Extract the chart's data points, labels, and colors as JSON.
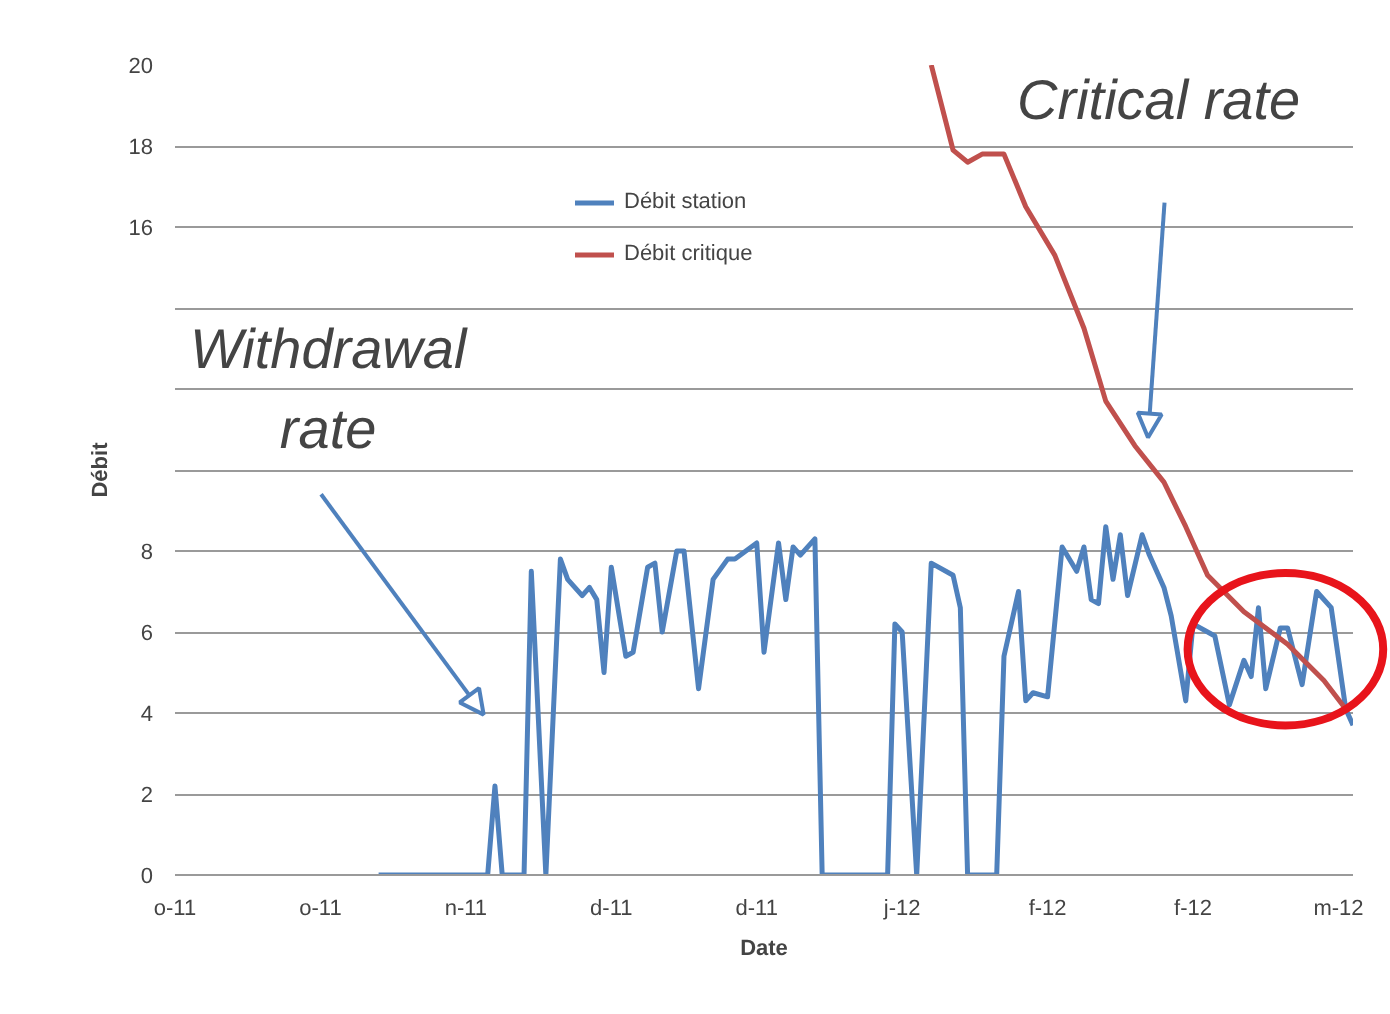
{
  "chart_data": {
    "type": "line",
    "xlabel": "Date",
    "ylabel": "Débit",
    "xlim": [
      "2011-10-05",
      "2012-03-15"
    ],
    "ylim": [
      0,
      20
    ],
    "xticks": [
      {
        "value": "2011-10-05",
        "label": "o-11"
      },
      {
        "value": "2011-10-25",
        "label": "o-11"
      },
      {
        "value": "2011-11-14",
        "label": "n-11"
      },
      {
        "value": "2011-12-04",
        "label": "d-11"
      },
      {
        "value": "2011-12-24",
        "label": "d-11"
      },
      {
        "value": "2012-01-13",
        "label": "j-12"
      },
      {
        "value": "2012-02-02",
        "label": "f-12"
      },
      {
        "value": "2012-02-22",
        "label": "f-12"
      },
      {
        "value": "2012-03-13",
        "label": "m-12"
      }
    ],
    "yticks": [
      0,
      2,
      4,
      6,
      8,
      {
        "value": 10,
        "label": null
      },
      {
        "value": 12,
        "label": null
      },
      {
        "value": 14,
        "label": null
      },
      16,
      18,
      20
    ],
    "grid": "y",
    "legend": "top",
    "series": [
      {
        "name": "Débit station",
        "color": "#4f81bd",
        "x": [
          "2011-11-02",
          "2011-11-17",
          "2011-11-18",
          "2011-11-19",
          "2011-11-22",
          "2011-11-23",
          "2011-11-25",
          "2011-11-27",
          "2011-11-28",
          "2011-11-30",
          "2011-12-01",
          "2011-12-02",
          "2011-12-03",
          "2011-12-04",
          "2011-12-06",
          "2011-12-07",
          "2011-12-09",
          "2011-12-10",
          "2011-12-11",
          "2011-12-13",
          "2011-12-14",
          "2011-12-16",
          "2011-12-18",
          "2011-12-20",
          "2011-12-21",
          "2011-12-24",
          "2011-12-25",
          "2011-12-27",
          "2011-12-28",
          "2011-12-29",
          "2011-12-30",
          "2012-01-01",
          "2012-01-02",
          "2012-01-11",
          "2012-01-12",
          "2012-01-13",
          "2012-01-15",
          "2012-01-17",
          "2012-01-20",
          "2012-01-21",
          "2012-01-22",
          "2012-01-26",
          "2012-01-27",
          "2012-01-29",
          "2012-01-30",
          "2012-01-31",
          "2012-02-02",
          "2012-02-04",
          "2012-02-06",
          "2012-02-07",
          "2012-02-08",
          "2012-02-09",
          "2012-02-10",
          "2012-02-11",
          "2012-02-12",
          "2012-02-13",
          "2012-02-15",
          "2012-02-16",
          "2012-02-18",
          "2012-02-19",
          "2012-02-21",
          "2012-02-22",
          "2012-02-25",
          "2012-02-27",
          "2012-02-29",
          "2012-03-01",
          "2012-03-02",
          "2012-03-03",
          "2012-03-05",
          "2012-03-06",
          "2012-03-08",
          "2012-03-10",
          "2012-03-12",
          "2012-03-14",
          "2012-03-15"
        ],
        "values": [
          0,
          0,
          2.2,
          0,
          0,
          7.5,
          0,
          7.8,
          7.3,
          6.9,
          7.1,
          6.8,
          5.0,
          7.6,
          5.4,
          5.5,
          7.6,
          7.7,
          6.0,
          8.0,
          8.0,
          4.6,
          7.3,
          7.8,
          7.8,
          8.2,
          5.5,
          8.2,
          6.8,
          8.1,
          7.9,
          8.3,
          0,
          0,
          6.2,
          6.0,
          0,
          7.7,
          7.4,
          6.6,
          0,
          0,
          5.4,
          7.0,
          4.3,
          4.5,
          4.4,
          8.1,
          7.5,
          8.1,
          6.8,
          6.7,
          8.6,
          7.3,
          8.4,
          6.9,
          8.4,
          7.9,
          7.1,
          6.4,
          4.3,
          6.2,
          5.9,
          4.2,
          5.3,
          4.9,
          6.6,
          4.6,
          6.1,
          6.1,
          4.7,
          7.0,
          6.6,
          4.1,
          3.7
        ]
      },
      {
        "name": "Débit critique",
        "color": "#c0504d",
        "x": [
          "2012-01-17",
          "2012-01-19",
          "2012-01-20",
          "2012-01-22",
          "2012-01-24",
          "2012-01-27",
          "2012-01-30",
          "2012-02-03",
          "2012-02-07",
          "2012-02-10",
          "2012-02-14",
          "2012-02-18",
          "2012-02-21",
          "2012-02-24",
          "2012-02-29",
          "2012-03-06",
          "2012-03-11",
          "2012-03-14"
        ],
        "values": [
          20,
          18.6,
          17.9,
          17.6,
          17.8,
          17.8,
          16.5,
          15.3,
          13.5,
          11.7,
          10.6,
          9.7,
          8.6,
          7.4,
          6.5,
          5.7,
          4.8,
          4.1
        ]
      }
    ],
    "annotations": [
      "Withdrawal rate",
      "Critical rate"
    ]
  }
}
